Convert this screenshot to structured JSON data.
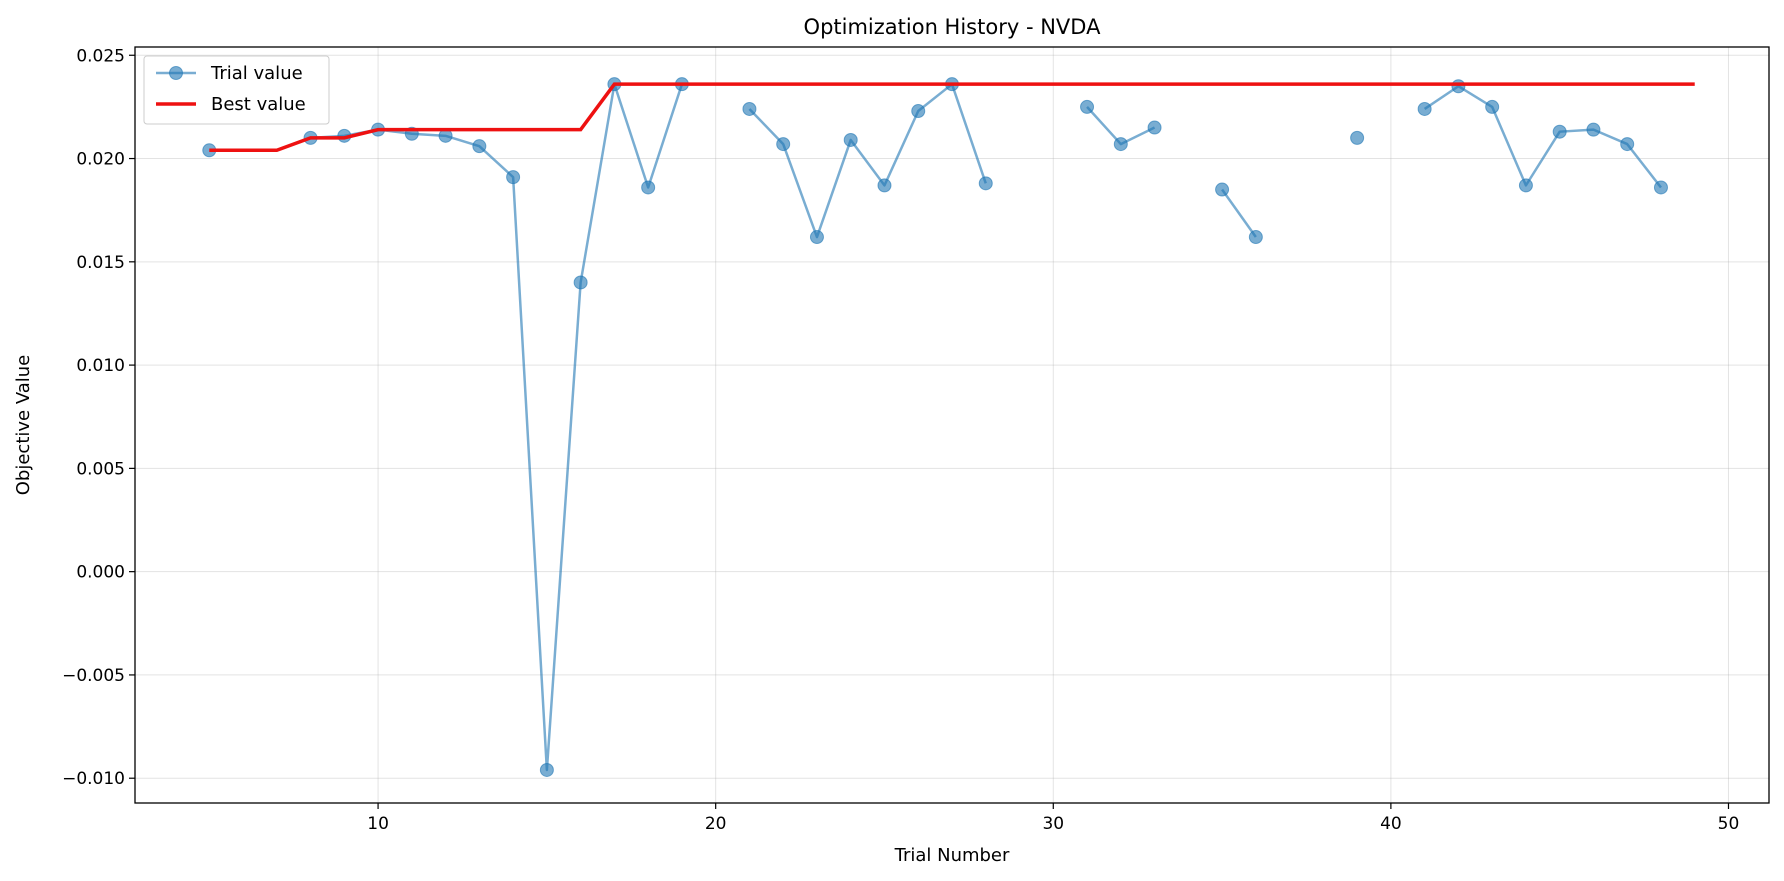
{
  "chart_data": {
    "type": "line",
    "title": "Optimization History - NVDA",
    "xlabel": "Trial Number",
    "ylabel": "Objective Value",
    "xlim": [
      2.8,
      51.2
    ],
    "ylim": [
      -0.0112,
      0.0254
    ],
    "xticks": [
      10,
      20,
      30,
      40,
      50
    ],
    "xtick_labels": [
      "10",
      "20",
      "30",
      "40",
      "50"
    ],
    "yticks": [
      -0.01,
      -0.005,
      0.0,
      0.005,
      0.01,
      0.015,
      0.02,
      0.025
    ],
    "ytick_labels": [
      "−0.010",
      "−0.005",
      "0.000",
      "0.005",
      "0.010",
      "0.015",
      "0.020",
      "0.025"
    ],
    "grid": true,
    "legend_position": "top-left",
    "series": [
      {
        "name": "Trial value",
        "style": "line-markers",
        "color": "#1f77b4",
        "segments": [
          [
            [
              5,
              0.0204
            ]
          ],
          [
            [
              8,
              0.021
            ],
            [
              9,
              0.0211
            ],
            [
              10,
              0.0214
            ],
            [
              11,
              0.0212
            ],
            [
              12,
              0.0211
            ],
            [
              13,
              0.0206
            ],
            [
              14,
              0.0191
            ],
            [
              15,
              -0.0096
            ],
            [
              16,
              0.014
            ],
            [
              17,
              0.0236
            ],
            [
              18,
              0.0186
            ],
            [
              19,
              0.0236
            ]
          ],
          [
            [
              21,
              0.0224
            ],
            [
              22,
              0.0207
            ],
            [
              23,
              0.0162
            ],
            [
              24,
              0.0209
            ],
            [
              25,
              0.0187
            ],
            [
              26,
              0.0223
            ],
            [
              27,
              0.0236
            ],
            [
              28,
              0.0188
            ]
          ],
          [
            [
              31,
              0.0225
            ],
            [
              32,
              0.0207
            ],
            [
              33,
              0.0215
            ]
          ],
          [
            [
              35,
              0.0185
            ],
            [
              36,
              0.0162
            ]
          ],
          [
            [
              39,
              0.021
            ]
          ],
          [
            [
              41,
              0.0224
            ],
            [
              42,
              0.0235
            ],
            [
              43,
              0.0225
            ],
            [
              44,
              0.0187
            ],
            [
              45,
              0.0213
            ],
            [
              46,
              0.0214
            ],
            [
              47,
              0.0207
            ],
            [
              48,
              0.0186
            ]
          ]
        ]
      },
      {
        "name": "Best value",
        "style": "line",
        "color": "#ee1111",
        "points": [
          [
            5,
            0.0204
          ],
          [
            7,
            0.0204
          ],
          [
            8,
            0.021
          ],
          [
            9,
            0.021
          ],
          [
            10,
            0.0214
          ],
          [
            16,
            0.0214
          ],
          [
            17,
            0.0236
          ],
          [
            49,
            0.0236
          ]
        ]
      }
    ]
  }
}
